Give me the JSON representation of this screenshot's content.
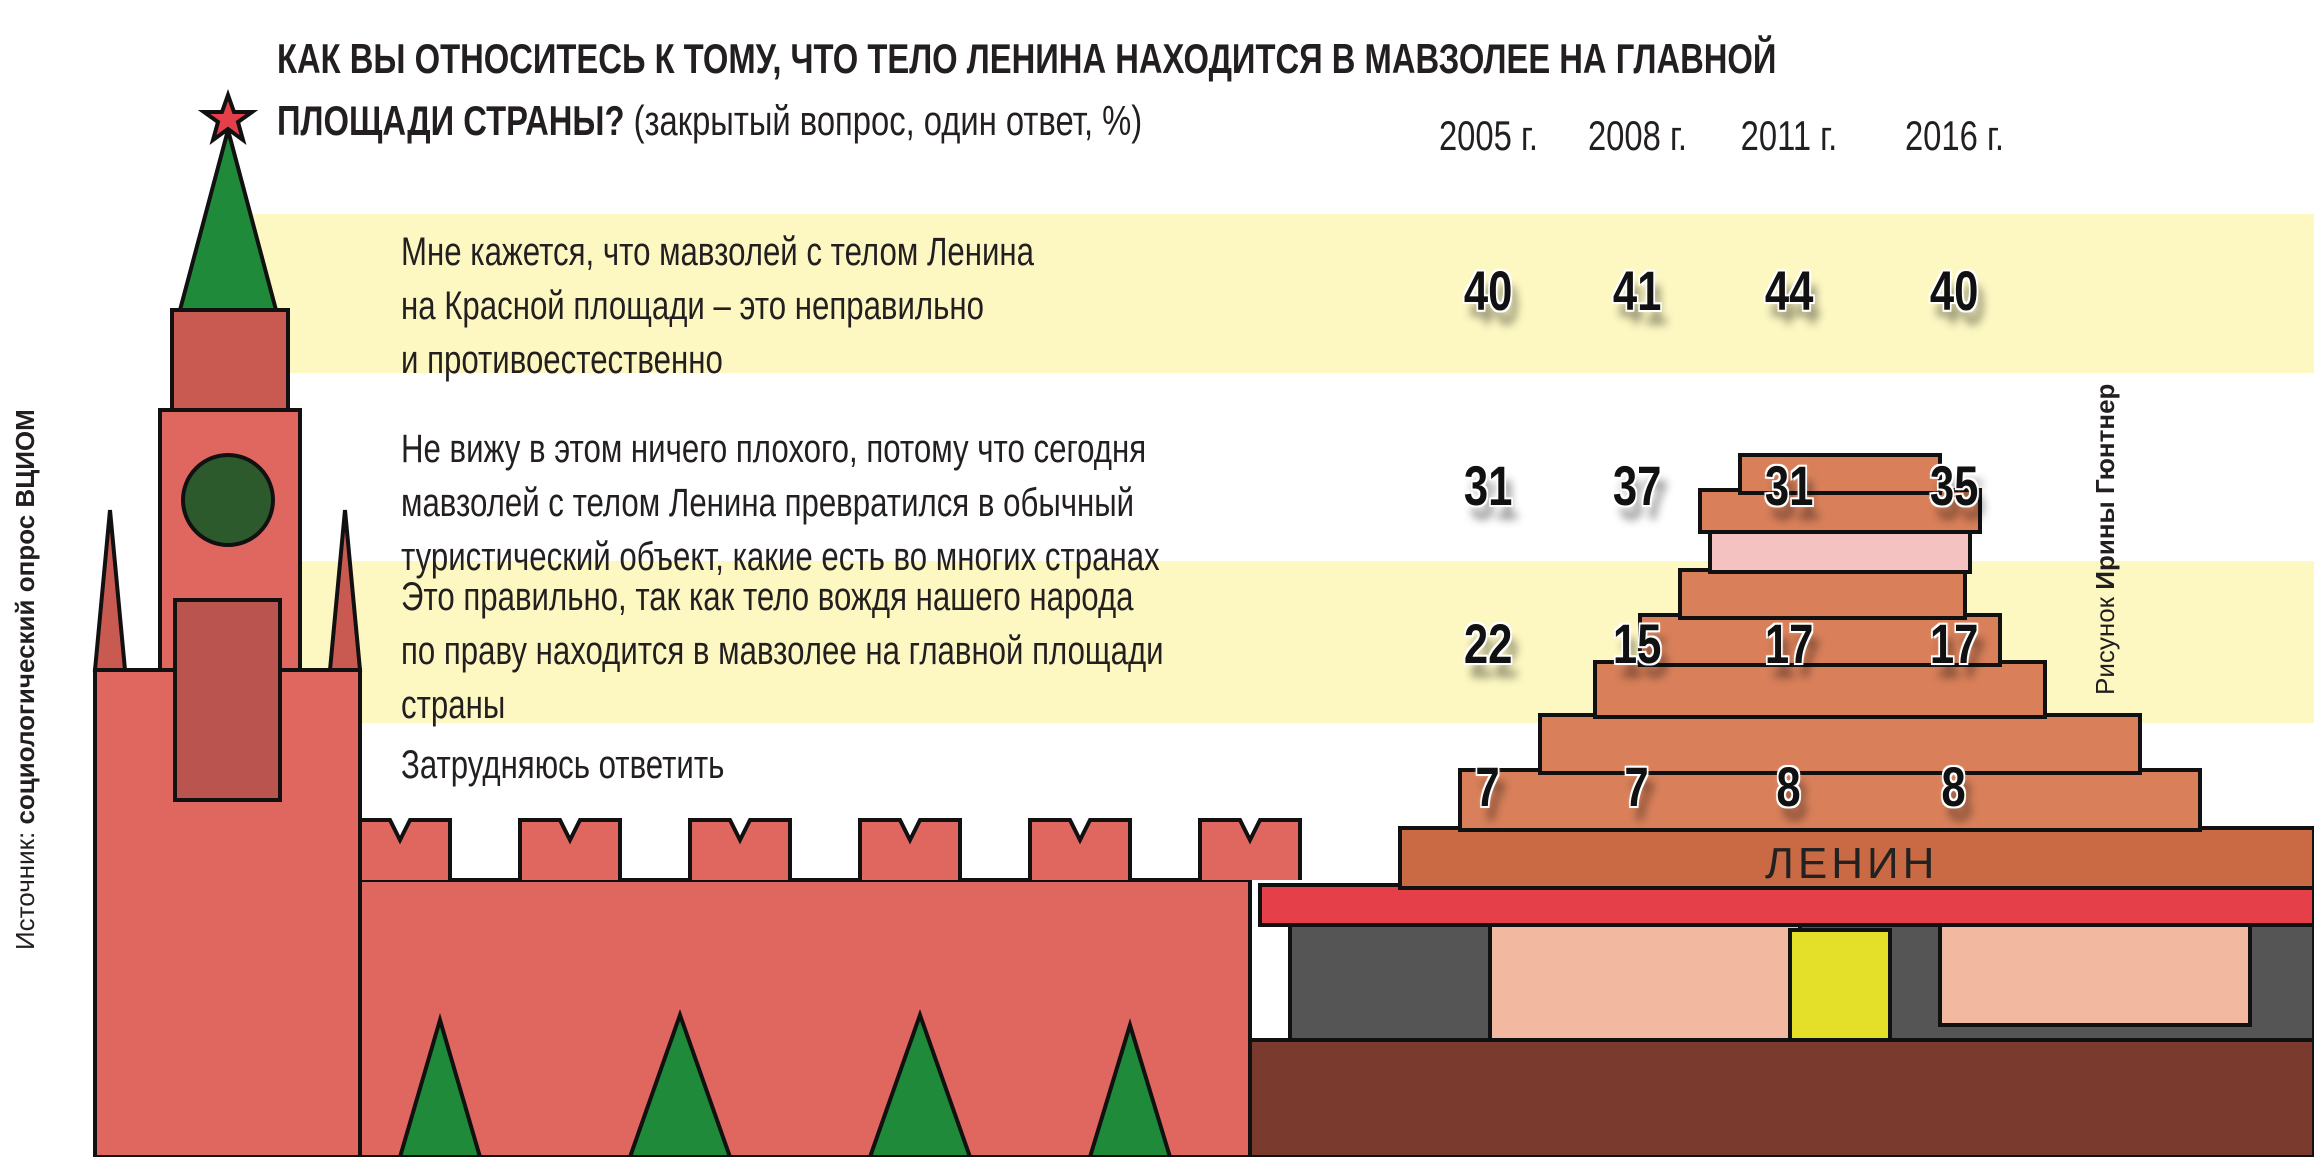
{
  "title_bold": "КАК ВЫ ОТНОСИТЕСЬ К ТОМУ, ЧТО ТЕЛО ЛЕНИНА НАХОДИТСЯ В МАВЗОЛЕЕ НА ГЛАВНОЙ",
  "title_bold_2": "ПЛОЩАДИ СТРАНЫ?",
  "title_note": "(закрытый вопрос, один ответ, %)",
  "source_label": "Источник:",
  "source_value": "социологический опрос ВЦИОМ",
  "credit_label": "Рисунок",
  "credit_value": "Ирины Гюнтнер",
  "mausoleum_sign": "ЛЕНИН",
  "colors": {
    "band": "#fdf8c2",
    "brick": "#e0675f",
    "mausoleum": "#d9805a",
    "spruce": "#1f8a3a"
  },
  "chart_data": {
    "type": "table",
    "columns": [
      "2005 г.",
      "2008 г.",
      "2011 г.",
      "2016 г."
    ],
    "rows": [
      {
        "lines": [
          "Мне кажется, что мавзолей с телом Ленина",
          "на Красной площади – это неправильно",
          "и противоестественно"
        ],
        "values": [
          40,
          41,
          44,
          40
        ]
      },
      {
        "lines": [
          "Не вижу в этом ничего плохого, потому что сегодня",
          "мавзолей с телом Ленина превратился в обычный",
          "туристический объект, какие есть во многих странах"
        ],
        "values": [
          31,
          37,
          31,
          35
        ]
      },
      {
        "lines": [
          "Это правильно, так как тело вождя нашего народа",
          "по праву находится в мавзолее на главной площади",
          "страны"
        ],
        "values": [
          22,
          15,
          17,
          17
        ]
      },
      {
        "lines": [
          "Затрудняюсь ответить"
        ],
        "values": [
          7,
          7,
          8,
          8
        ]
      }
    ]
  }
}
